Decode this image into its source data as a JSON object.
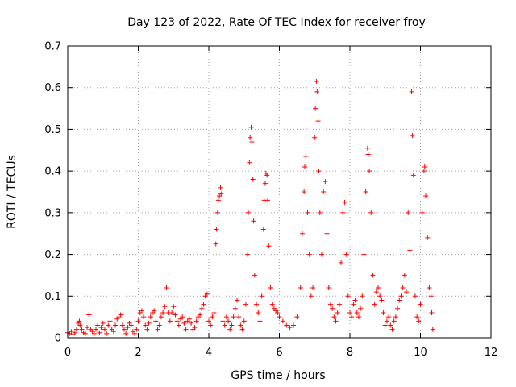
{
  "chart_data": {
    "type": "scatter",
    "title": "Day 123 of 2022, Rate Of TEC Index for receiver froy",
    "xlabel": "GPS time / hours",
    "ylabel": "ROTI / TECUs",
    "xlim": [
      0,
      12
    ],
    "ylim": [
      0,
      0.7
    ],
    "x_ticks": [
      "0",
      "2",
      "4",
      "6",
      "8",
      "10",
      "12"
    ],
    "y_ticks": [
      "0",
      "0.1",
      "0.2",
      "0.3",
      "0.4",
      "0.5",
      "0.6",
      "0.7"
    ],
    "grid": true,
    "marker": "+",
    "color": "#ff0000",
    "series": [
      {
        "name": "ROTI",
        "points": [
          [
            0.0,
            0.012
          ],
          [
            0.05,
            0.01
          ],
          [
            0.1,
            0.015
          ],
          [
            0.15,
            0.008
          ],
          [
            0.2,
            0.012
          ],
          [
            0.25,
            0.02
          ],
          [
            0.3,
            0.035
          ],
          [
            0.33,
            0.04
          ],
          [
            0.35,
            0.03
          ],
          [
            0.4,
            0.02
          ],
          [
            0.45,
            0.012
          ],
          [
            0.5,
            0.01
          ],
          [
            0.55,
            0.025
          ],
          [
            0.6,
            0.055
          ],
          [
            0.65,
            0.02
          ],
          [
            0.7,
            0.015
          ],
          [
            0.75,
            0.01
          ],
          [
            0.8,
            0.02
          ],
          [
            0.85,
            0.03
          ],
          [
            0.9,
            0.012
          ],
          [
            0.95,
            0.025
          ],
          [
            1.0,
            0.035
          ],
          [
            1.05,
            0.02
          ],
          [
            1.1,
            0.01
          ],
          [
            1.15,
            0.03
          ],
          [
            1.2,
            0.04
          ],
          [
            1.25,
            0.02
          ],
          [
            1.3,
            0.015
          ],
          [
            1.35,
            0.03
          ],
          [
            1.4,
            0.045
          ],
          [
            1.45,
            0.05
          ],
          [
            1.5,
            0.055
          ],
          [
            1.55,
            0.03
          ],
          [
            1.6,
            0.02
          ],
          [
            1.65,
            0.01
          ],
          [
            1.7,
            0.025
          ],
          [
            1.75,
            0.035
          ],
          [
            1.8,
            0.03
          ],
          [
            1.85,
            0.015
          ],
          [
            1.9,
            0.01
          ],
          [
            1.95,
            0.02
          ],
          [
            2.0,
            0.04
          ],
          [
            2.05,
            0.06
          ],
          [
            2.1,
            0.065
          ],
          [
            2.15,
            0.05
          ],
          [
            2.2,
            0.03
          ],
          [
            2.25,
            0.02
          ],
          [
            2.3,
            0.035
          ],
          [
            2.35,
            0.05
          ],
          [
            2.4,
            0.06
          ],
          [
            2.45,
            0.065
          ],
          [
            2.5,
            0.04
          ],
          [
            2.55,
            0.02
          ],
          [
            2.6,
            0.03
          ],
          [
            2.65,
            0.05
          ],
          [
            2.7,
            0.06
          ],
          [
            2.75,
            0.075
          ],
          [
            2.8,
            0.12
          ],
          [
            2.85,
            0.06
          ],
          [
            2.9,
            0.04
          ],
          [
            2.95,
            0.06
          ],
          [
            3.0,
            0.075
          ],
          [
            3.05,
            0.055
          ],
          [
            3.1,
            0.04
          ],
          [
            3.15,
            0.03
          ],
          [
            3.2,
            0.045
          ],
          [
            3.25,
            0.05
          ],
          [
            3.3,
            0.035
          ],
          [
            3.35,
            0.02
          ],
          [
            3.4,
            0.04
          ],
          [
            3.45,
            0.045
          ],
          [
            3.5,
            0.035
          ],
          [
            3.55,
            0.02
          ],
          [
            3.6,
            0.025
          ],
          [
            3.65,
            0.04
          ],
          [
            3.7,
            0.05
          ],
          [
            3.75,
            0.055
          ],
          [
            3.8,
            0.07
          ],
          [
            3.85,
            0.08
          ],
          [
            3.9,
            0.1
          ],
          [
            3.95,
            0.105
          ],
          [
            4.0,
            0.04
          ],
          [
            4.05,
            0.03
          ],
          [
            4.1,
            0.05
          ],
          [
            4.15,
            0.06
          ],
          [
            4.2,
            0.225
          ],
          [
            4.22,
            0.26
          ],
          [
            4.25,
            0.3
          ],
          [
            4.27,
            0.33
          ],
          [
            4.3,
            0.34
          ],
          [
            4.33,
            0.36
          ],
          [
            4.35,
            0.345
          ],
          [
            4.4,
            0.04
          ],
          [
            4.45,
            0.03
          ],
          [
            4.5,
            0.05
          ],
          [
            4.55,
            0.04
          ],
          [
            4.6,
            0.02
          ],
          [
            4.65,
            0.03
          ],
          [
            4.7,
            0.05
          ],
          [
            4.75,
            0.07
          ],
          [
            4.8,
            0.09
          ],
          [
            4.85,
            0.05
          ],
          [
            4.9,
            0.03
          ],
          [
            4.95,
            0.02
          ],
          [
            5.0,
            0.04
          ],
          [
            5.05,
            0.08
          ],
          [
            5.1,
            0.2
          ],
          [
            5.12,
            0.3
          ],
          [
            5.15,
            0.42
          ],
          [
            5.17,
            0.48
          ],
          [
            5.2,
            0.505
          ],
          [
            5.22,
            0.47
          ],
          [
            5.25,
            0.38
          ],
          [
            5.27,
            0.28
          ],
          [
            5.3,
            0.15
          ],
          [
            5.35,
            0.08
          ],
          [
            5.4,
            0.06
          ],
          [
            5.45,
            0.04
          ],
          [
            5.5,
            0.1
          ],
          [
            5.55,
            0.26
          ],
          [
            5.57,
            0.33
          ],
          [
            5.6,
            0.37
          ],
          [
            5.62,
            0.395
          ],
          [
            5.65,
            0.39
          ],
          [
            5.67,
            0.33
          ],
          [
            5.7,
            0.22
          ],
          [
            5.75,
            0.12
          ],
          [
            5.8,
            0.08
          ],
          [
            5.85,
            0.07
          ],
          [
            5.9,
            0.065
          ],
          [
            5.95,
            0.06
          ],
          [
            6.0,
            0.05
          ],
          [
            6.1,
            0.04
          ],
          [
            6.2,
            0.03
          ],
          [
            6.3,
            0.025
          ],
          [
            6.4,
            0.03
          ],
          [
            6.5,
            0.05
          ],
          [
            6.6,
            0.12
          ],
          [
            6.65,
            0.25
          ],
          [
            6.7,
            0.35
          ],
          [
            6.72,
            0.41
          ],
          [
            6.75,
            0.435
          ],
          [
            6.8,
            0.3
          ],
          [
            6.85,
            0.2
          ],
          [
            6.9,
            0.1
          ],
          [
            6.95,
            0.12
          ],
          [
            7.0,
            0.48
          ],
          [
            7.02,
            0.55
          ],
          [
            7.05,
            0.615
          ],
          [
            7.07,
            0.59
          ],
          [
            7.1,
            0.52
          ],
          [
            7.12,
            0.4
          ],
          [
            7.15,
            0.3
          ],
          [
            7.2,
            0.2
          ],
          [
            7.25,
            0.35
          ],
          [
            7.3,
            0.375
          ],
          [
            7.35,
            0.25
          ],
          [
            7.4,
            0.12
          ],
          [
            7.45,
            0.08
          ],
          [
            7.5,
            0.07
          ],
          [
            7.55,
            0.05
          ],
          [
            7.6,
            0.04
          ],
          [
            7.65,
            0.06
          ],
          [
            7.7,
            0.08
          ],
          [
            7.75,
            0.18
          ],
          [
            7.8,
            0.3
          ],
          [
            7.85,
            0.325
          ],
          [
            7.9,
            0.2
          ],
          [
            7.95,
            0.1
          ],
          [
            8.0,
            0.06
          ],
          [
            8.05,
            0.05
          ],
          [
            8.1,
            0.08
          ],
          [
            8.15,
            0.09
          ],
          [
            8.2,
            0.06
          ],
          [
            8.25,
            0.05
          ],
          [
            8.3,
            0.07
          ],
          [
            8.35,
            0.1
          ],
          [
            8.4,
            0.2
          ],
          [
            8.45,
            0.35
          ],
          [
            8.5,
            0.455
          ],
          [
            8.52,
            0.44
          ],
          [
            8.55,
            0.4
          ],
          [
            8.6,
            0.3
          ],
          [
            8.65,
            0.15
          ],
          [
            8.7,
            0.08
          ],
          [
            8.75,
            0.11
          ],
          [
            8.8,
            0.12
          ],
          [
            8.85,
            0.1
          ],
          [
            8.9,
            0.09
          ],
          [
            8.95,
            0.06
          ],
          [
            9.0,
            0.03
          ],
          [
            9.05,
            0.04
          ],
          [
            9.1,
            0.05
          ],
          [
            9.15,
            0.03
          ],
          [
            9.2,
            0.02
          ],
          [
            9.25,
            0.04
          ],
          [
            9.3,
            0.05
          ],
          [
            9.35,
            0.07
          ],
          [
            9.4,
            0.09
          ],
          [
            9.45,
            0.1
          ],
          [
            9.5,
            0.12
          ],
          [
            9.55,
            0.15
          ],
          [
            9.6,
            0.11
          ],
          [
            9.65,
            0.3
          ],
          [
            9.7,
            0.21
          ],
          [
            9.75,
            0.59
          ],
          [
            9.77,
            0.485
          ],
          [
            9.8,
            0.39
          ],
          [
            9.85,
            0.1
          ],
          [
            9.9,
            0.05
          ],
          [
            9.95,
            0.04
          ],
          [
            10.0,
            0.08
          ],
          [
            10.05,
            0.3
          ],
          [
            10.1,
            0.4
          ],
          [
            10.12,
            0.41
          ],
          [
            10.15,
            0.34
          ],
          [
            10.2,
            0.24
          ],
          [
            10.25,
            0.12
          ],
          [
            10.3,
            0.1
          ],
          [
            10.32,
            0.06
          ],
          [
            10.35,
            0.02
          ]
        ]
      }
    ]
  }
}
